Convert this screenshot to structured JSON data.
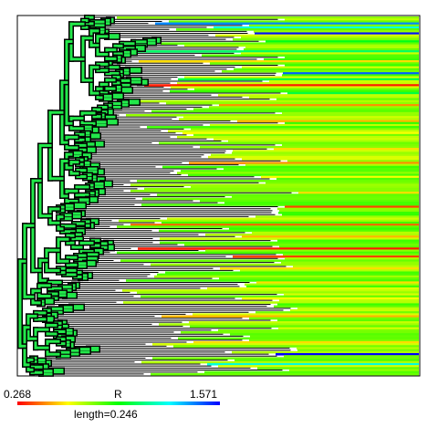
{
  "chart_data": {
    "type": "heatmap",
    "title": "",
    "description_kind": "phylogenetic tree with per-leaf color-coded rate strips",
    "legend": {
      "variable": "R",
      "min": "0.268",
      "max": "1.571",
      "colormap": [
        "#ff0000",
        "#ffff00",
        "#00ff00",
        "#00ffff",
        "#0000ff"
      ]
    },
    "scale_bar": {
      "label": "length=0.246",
      "value": 0.246
    },
    "leaf_count": 180,
    "background_rate": 0.75,
    "rate_bands": [
      {
        "leaf": 3,
        "value": 1.4
      },
      {
        "leaf": 5,
        "value": 1.2
      },
      {
        "leaf": 8,
        "value": 1.55
      },
      {
        "leaf": 12,
        "value": 0.95
      },
      {
        "leaf": 17,
        "value": 1.05
      },
      {
        "leaf": 22,
        "value": 0.55
      },
      {
        "leaf": 28,
        "value": 1.45
      },
      {
        "leaf": 31,
        "value": 1.0
      },
      {
        "leaf": 34,
        "value": 0.3
      },
      {
        "leaf": 38,
        "value": 1.0
      },
      {
        "leaf": 44,
        "value": 0.45
      },
      {
        "leaf": 52,
        "value": 0.5
      },
      {
        "leaf": 58,
        "value": 0.6
      },
      {
        "leaf": 66,
        "value": 0.55
      },
      {
        "leaf": 73,
        "value": 0.45
      },
      {
        "leaf": 80,
        "value": 0.6
      },
      {
        "leaf": 88,
        "value": 0.55
      },
      {
        "leaf": 95,
        "value": 0.35
      },
      {
        "leaf": 104,
        "value": 0.4
      },
      {
        "leaf": 110,
        "value": 0.5
      },
      {
        "leaf": 116,
        "value": 0.3
      },
      {
        "leaf": 120,
        "value": 0.35
      },
      {
        "leaf": 126,
        "value": 0.55
      },
      {
        "leaf": 133,
        "value": 0.55
      },
      {
        "leaf": 141,
        "value": 0.6
      },
      {
        "leaf": 150,
        "value": 0.5
      },
      {
        "leaf": 156,
        "value": 0.65
      },
      {
        "leaf": 163,
        "value": 0.55
      },
      {
        "leaf": 169,
        "value": 1.6
      },
      {
        "leaf": 174,
        "value": 1.2
      }
    ]
  }
}
